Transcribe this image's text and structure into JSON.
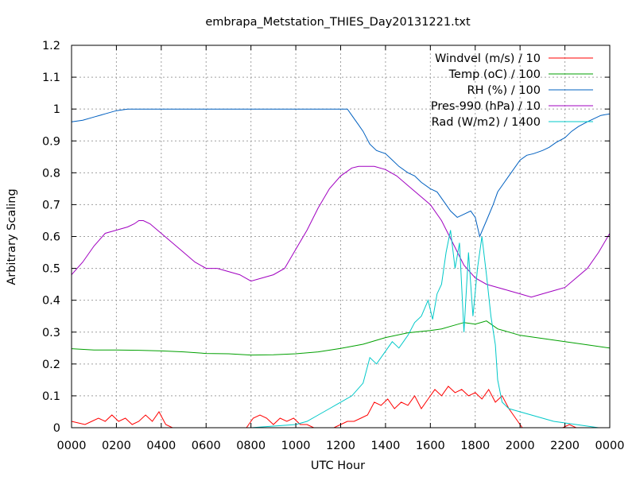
{
  "chart_data": {
    "type": "line",
    "title": "embrapa_Metstation_THIES_Day20131221.txt",
    "xlabel": "UTC Hour",
    "ylabel": "Arbitrary Scaling",
    "xlim": [
      0,
      24
    ],
    "ylim": [
      0,
      1.2
    ],
    "grid": true,
    "legend_position": "top-right",
    "x_ticks": [
      {
        "value": 0,
        "label": "0000"
      },
      {
        "value": 2,
        "label": "0200"
      },
      {
        "value": 4,
        "label": "0400"
      },
      {
        "value": 6,
        "label": "0600"
      },
      {
        "value": 8,
        "label": "0800"
      },
      {
        "value": 10,
        "label": "1000"
      },
      {
        "value": 12,
        "label": "1200"
      },
      {
        "value": 14,
        "label": "1400"
      },
      {
        "value": 16,
        "label": "1600"
      },
      {
        "value": 18,
        "label": "1800"
      },
      {
        "value": 20,
        "label": "2000"
      },
      {
        "value": 22,
        "label": "2200"
      },
      {
        "value": 24,
        "label": "0000"
      }
    ],
    "y_ticks": [
      {
        "value": 0,
        "label": "0"
      },
      {
        "value": 0.1,
        "label": "0.1"
      },
      {
        "value": 0.2,
        "label": "0.2"
      },
      {
        "value": 0.3,
        "label": "0.3"
      },
      {
        "value": 0.4,
        "label": "0.4"
      },
      {
        "value": 0.5,
        "label": "0.5"
      },
      {
        "value": 0.6,
        "label": "0.6"
      },
      {
        "value": 0.7,
        "label": "0.7"
      },
      {
        "value": 0.8,
        "label": "0.8"
      },
      {
        "value": 0.9,
        "label": "0.9"
      },
      {
        "value": 1.0,
        "label": "1"
      },
      {
        "value": 1.1,
        "label": "1.1"
      },
      {
        "value": 1.2,
        "label": "1.2"
      }
    ],
    "series": [
      {
        "name": "Windvel (m/s) / 10",
        "color": "#ff0000",
        "x": [
          0,
          0.3,
          0.6,
          0.9,
          1.2,
          1.5,
          1.8,
          2.1,
          2.4,
          2.7,
          3,
          3.3,
          3.6,
          3.9,
          4.2,
          4.5,
          4.8,
          5.1,
          5.4,
          5.7,
          6,
          6.3,
          6.6,
          6.9,
          7.2,
          7.5,
          7.8,
          8.1,
          8.4,
          8.7,
          9,
          9.3,
          9.6,
          9.9,
          10.2,
          10.5,
          10.8,
          11.1,
          11.4,
          11.7,
          12,
          12.3,
          12.6,
          12.9,
          13.2,
          13.5,
          13.8,
          14.1,
          14.4,
          14.7,
          15,
          15.3,
          15.6,
          15.9,
          16.2,
          16.5,
          16.8,
          17.1,
          17.4,
          17.7,
          18,
          18.3,
          18.6,
          18.9,
          19.2,
          19.5,
          19.8,
          20.1,
          20.4,
          20.7,
          21,
          21.3,
          21.6,
          21.9,
          22.2,
          22.5,
          22.8,
          23.1,
          23.4,
          23.7,
          24
        ],
        "y": [
          0.02,
          0.015,
          0.01,
          0.02,
          0.03,
          0.02,
          0.04,
          0.02,
          0.03,
          0.01,
          0.02,
          0.04,
          0.02,
          0.05,
          0.01,
          0,
          0,
          0,
          0,
          0,
          0,
          0,
          0,
          0,
          0,
          0,
          0,
          0.03,
          0.04,
          0.03,
          0.01,
          0.03,
          0.02,
          0.03,
          0.01,
          0.01,
          0,
          0,
          0,
          0,
          0.01,
          0.02,
          0.02,
          0.03,
          0.04,
          0.08,
          0.07,
          0.09,
          0.06,
          0.08,
          0.07,
          0.1,
          0.06,
          0.09,
          0.12,
          0.1,
          0.13,
          0.11,
          0.12,
          0.1,
          0.11,
          0.09,
          0.12,
          0.08,
          0.1,
          0.06,
          0.03,
          0,
          0,
          0,
          0,
          0,
          0,
          0,
          0.01,
          0,
          0,
          0,
          0,
          0,
          0
        ]
      },
      {
        "name": "Temp (oC) / 100",
        "color": "#00a000",
        "x": [
          0,
          1,
          2,
          3,
          4,
          5,
          6,
          7,
          8,
          9,
          10,
          11,
          12,
          13,
          14,
          15,
          16,
          16.5,
          17,
          17.5,
          18,
          18.5,
          19,
          20,
          21,
          22,
          23,
          24
        ],
        "y": [
          0.248,
          0.244,
          0.244,
          0.243,
          0.241,
          0.238,
          0.233,
          0.232,
          0.228,
          0.229,
          0.232,
          0.238,
          0.249,
          0.262,
          0.283,
          0.298,
          0.305,
          0.31,
          0.32,
          0.33,
          0.325,
          0.335,
          0.31,
          0.29,
          0.28,
          0.27,
          0.26,
          0.25
        ]
      },
      {
        "name": "RH (%) / 100",
        "color": "#0060c0",
        "x": [
          0,
          0.5,
          1,
          1.5,
          2,
          2.5,
          3,
          4,
          5,
          6,
          7,
          8,
          9,
          10,
          11,
          12,
          12.3,
          12.5,
          12.8,
          13,
          13.3,
          13.6,
          14,
          14.3,
          14.6,
          15,
          15.3,
          15.6,
          16,
          16.3,
          16.6,
          16.9,
          17.2,
          17.5,
          17.8,
          18,
          18.2,
          18.5,
          18.8,
          19,
          19.3,
          19.6,
          20,
          20.3,
          20.6,
          21,
          21.3,
          21.6,
          22,
          22.3,
          22.6,
          23,
          23.3,
          23.6,
          24
        ],
        "y": [
          0.96,
          0.965,
          0.975,
          0.985,
          0.995,
          1,
          1,
          1,
          1,
          1,
          1,
          1,
          1,
          1,
          1,
          1,
          1,
          0.98,
          0.95,
          0.93,
          0.89,
          0.87,
          0.86,
          0.84,
          0.82,
          0.8,
          0.79,
          0.77,
          0.75,
          0.74,
          0.71,
          0.68,
          0.66,
          0.67,
          0.68,
          0.66,
          0.6,
          0.65,
          0.7,
          0.74,
          0.77,
          0.8,
          0.84,
          0.855,
          0.86,
          0.87,
          0.88,
          0.895,
          0.91,
          0.93,
          0.945,
          0.96,
          0.97,
          0.98,
          0.985
        ]
      },
      {
        "name": "Pres-990 (hPa) / 10",
        "color": "#a000c0",
        "x": [
          0,
          0.5,
          1,
          1.5,
          2,
          2.5,
          2.8,
          3,
          3.2,
          3.5,
          4,
          4.5,
          5,
          5.5,
          6,
          6.5,
          7,
          7.5,
          8,
          8.5,
          9,
          9.5,
          10,
          10.5,
          11,
          11.5,
          12,
          12.5,
          12.8,
          13,
          13.5,
          14,
          14.5,
          15,
          15.5,
          16,
          16.5,
          17,
          17.5,
          18,
          18.5,
          19,
          19.5,
          20,
          20.5,
          21,
          21.5,
          22,
          22.5,
          23,
          23.5,
          24
        ],
        "y": [
          0.48,
          0.52,
          0.57,
          0.61,
          0.62,
          0.63,
          0.64,
          0.65,
          0.65,
          0.64,
          0.61,
          0.58,
          0.55,
          0.52,
          0.5,
          0.5,
          0.49,
          0.48,
          0.46,
          0.47,
          0.48,
          0.5,
          0.56,
          0.62,
          0.69,
          0.75,
          0.79,
          0.815,
          0.82,
          0.82,
          0.82,
          0.81,
          0.79,
          0.76,
          0.73,
          0.7,
          0.65,
          0.58,
          0.51,
          0.47,
          0.45,
          0.44,
          0.43,
          0.42,
          0.41,
          0.42,
          0.43,
          0.44,
          0.47,
          0.5,
          0.55,
          0.61
        ]
      },
      {
        "name": "Rad (W/m2) / 1400",
        "color": "#00c8c8",
        "x": [
          0,
          2,
          4,
          6,
          8,
          10,
          10.5,
          11,
          11.5,
          12,
          12.5,
          13,
          13.3,
          13.6,
          14,
          14.3,
          14.6,
          15,
          15.3,
          15.6,
          15.9,
          16.1,
          16.3,
          16.5,
          16.7,
          16.9,
          17.1,
          17.3,
          17.5,
          17.7,
          17.9,
          18.1,
          18.3,
          18.5,
          18.7,
          18.9,
          19,
          19.2,
          19.5,
          20,
          20.5,
          21,
          21.5,
          22,
          22.5,
          23,
          23.5,
          24
        ],
        "y": [
          0,
          0,
          0,
          0,
          0,
          0.01,
          0.02,
          0.04,
          0.06,
          0.08,
          0.1,
          0.14,
          0.22,
          0.2,
          0.24,
          0.27,
          0.25,
          0.29,
          0.33,
          0.35,
          0.4,
          0.34,
          0.42,
          0.45,
          0.55,
          0.62,
          0.5,
          0.58,
          0.3,
          0.55,
          0.35,
          0.5,
          0.6,
          0.48,
          0.35,
          0.26,
          0.15,
          0.08,
          0.06,
          0.05,
          0.04,
          0.03,
          0.02,
          0.015,
          0.01,
          0.005,
          0,
          0
        ]
      }
    ]
  }
}
